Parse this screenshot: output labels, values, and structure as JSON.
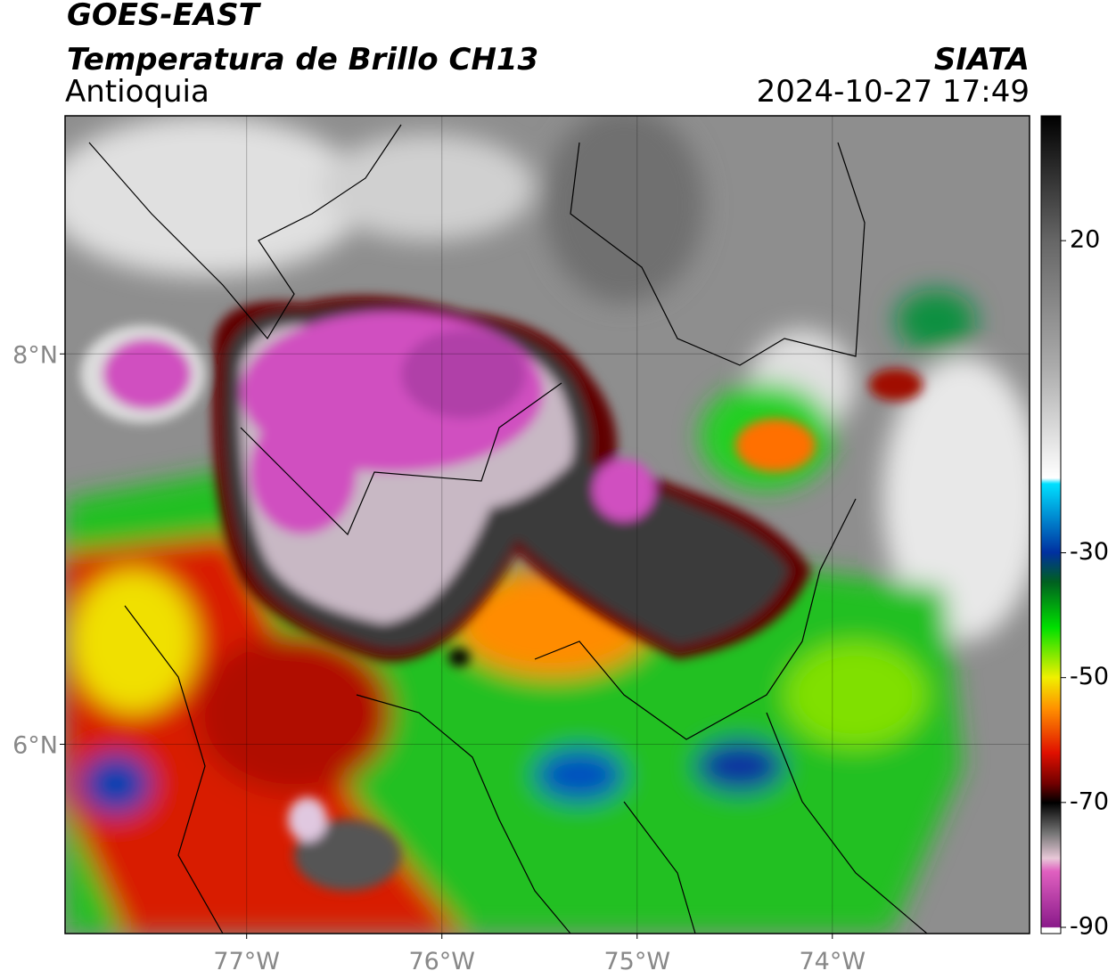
{
  "header": {
    "title": "GOES-EAST",
    "subtitle": "Temperatura de Brillo CH13",
    "region": "Antioquia",
    "source": "SIATA",
    "datetime": "2024-10-27 17:49"
  },
  "map": {
    "xlim": [
      -77.93,
      -72.99
    ],
    "ylim": [
      5.03,
      9.22
    ],
    "xticks": [
      {
        "value": -77,
        "label": "77°W"
      },
      {
        "value": -76,
        "label": "76°W"
      },
      {
        "value": -75,
        "label": "75°W"
      },
      {
        "value": -74,
        "label": "74°W"
      }
    ],
    "yticks": [
      {
        "value": 8,
        "label": "8°N"
      },
      {
        "value": 6,
        "label": "6°N"
      }
    ],
    "grid": true
  },
  "colorbar": {
    "lim": [
      -91,
      40
    ],
    "ticks": [
      20,
      -30,
      -50,
      -70,
      -90
    ]
  }
}
